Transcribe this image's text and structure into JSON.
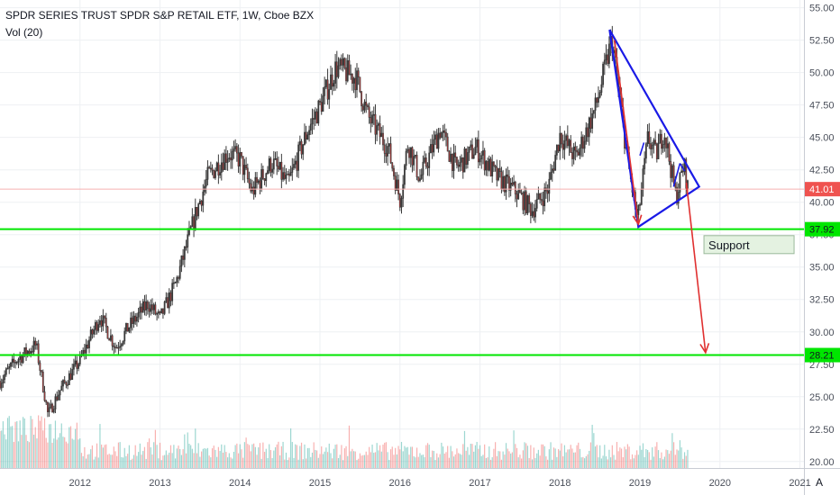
{
  "legend": {
    "title": "SPDR SERIES TRUST SPDR S&P RETAIL ETF, 1W, Cboe BZX",
    "indicator": "Vol (20)"
  },
  "chart_data": {
    "type": "candlestick",
    "x_ticks": [
      "2012",
      "2013",
      "2014",
      "2015",
      "2016",
      "2017",
      "2018",
      "2019",
      "2020",
      "2021"
    ],
    "y_ticks": [
      "20.00",
      "22.50",
      "25.00",
      "27.50",
      "30.00",
      "32.50",
      "35.00",
      "37.50",
      "40.00",
      "42.50",
      "45.00",
      "47.50",
      "50.00",
      "52.50",
      "55.00"
    ],
    "ylim": [
      19.5,
      55.6
    ],
    "xlim": [
      2011.0,
      2021.05
    ],
    "price_path": [
      [
        2011.0,
        26.2
      ],
      [
        2011.2,
        27.8
      ],
      [
        2011.45,
        29.0
      ],
      [
        2011.6,
        23.6
      ],
      [
        2011.75,
        25.5
      ],
      [
        2012.0,
        27.8
      ],
      [
        2012.25,
        31.2
      ],
      [
        2012.45,
        28.8
      ],
      [
        2012.6,
        30.3
      ],
      [
        2012.85,
        32.2
      ],
      [
        2013.0,
        31.0
      ],
      [
        2013.2,
        33.8
      ],
      [
        2013.45,
        39.2
      ],
      [
        2013.6,
        42.0
      ],
      [
        2013.85,
        43.8
      ],
      [
        2014.0,
        43.3
      ],
      [
        2014.15,
        40.8
      ],
      [
        2014.4,
        43.1
      ],
      [
        2014.6,
        41.4
      ],
      [
        2014.85,
        45.6
      ],
      [
        2015.0,
        47.4
      ],
      [
        2015.2,
        50.4
      ],
      [
        2015.45,
        49.6
      ],
      [
        2015.6,
        46.6
      ],
      [
        2015.85,
        44.2
      ],
      [
        2016.0,
        40.2
      ],
      [
        2016.1,
        44.6
      ],
      [
        2016.25,
        41.8
      ],
      [
        2016.5,
        45.6
      ],
      [
        2016.7,
        42.6
      ],
      [
        2016.95,
        44.2
      ],
      [
        2017.2,
        42.0
      ],
      [
        2017.45,
        40.8
      ],
      [
        2017.65,
        39.4
      ],
      [
        2017.85,
        41.0
      ],
      [
        2018.0,
        45.2
      ],
      [
        2018.2,
        43.4
      ],
      [
        2018.45,
        47.4
      ],
      [
        2018.65,
        52.6
      ],
      [
        2018.85,
        43.0
      ],
      [
        2018.97,
        38.5
      ],
      [
        2019.1,
        45.0
      ],
      [
        2019.2,
        43.6
      ],
      [
        2019.3,
        45.6
      ],
      [
        2019.45,
        40.4
      ],
      [
        2019.55,
        42.9
      ],
      [
        2019.6,
        41.0
      ]
    ],
    "last_price": "41.01",
    "last_price_value": 41.01,
    "horizontal_levels": [
      {
        "value": 37.92,
        "label": "37.92",
        "color": "#00e600"
      },
      {
        "value": 28.21,
        "label": "28.21",
        "color": "#00e600"
      }
    ],
    "triangle": {
      "color": "#1a1ae6",
      "points": [
        [
          2018.62,
          53.3
        ],
        [
          2018.98,
          38.1
        ],
        [
          2019.74,
          41.2
        ]
      ]
    },
    "down_arrows": [
      {
        "from": [
          2018.68,
          52.5
        ],
        "to": [
          2018.98,
          38.3
        ],
        "color": "#e03030"
      },
      {
        "from": [
          2019.58,
          41.5
        ],
        "to": [
          2019.82,
          28.4
        ],
        "color": "#e03030"
      }
    ],
    "annotation": {
      "text": "Support",
      "x": 2019.8,
      "y": 36.8
    },
    "volume": {
      "max_ratio": 0.9
    },
    "colors": {
      "up": "#26a69a",
      "down": "#ef5350",
      "candle_body": "#3a3a3a",
      "grid": "#eef0f3",
      "axis_text": "#4a4f5a",
      "last_price_line": "#f6b0b0",
      "last_price_tag": "#ef5350"
    }
  },
  "scale_button": "A"
}
